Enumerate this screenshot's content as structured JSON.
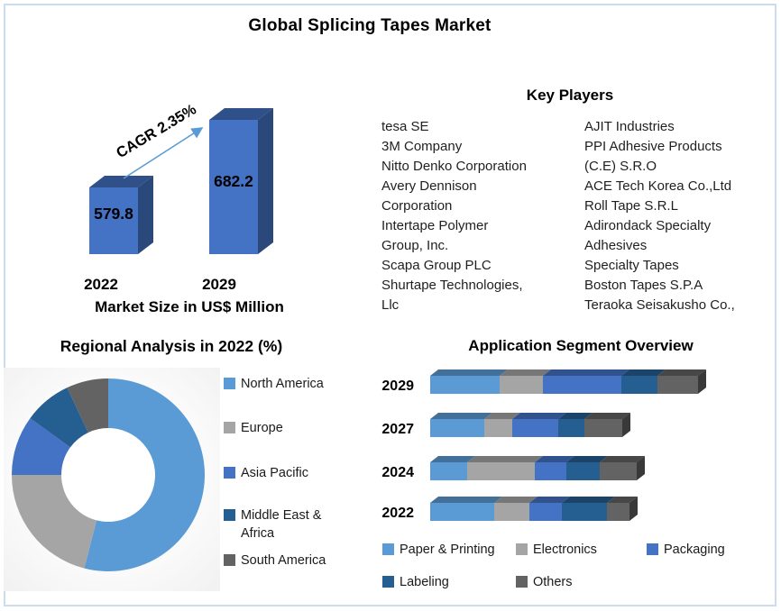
{
  "title": "Global Splicing Tapes Market",
  "key_players": {
    "title": "Key Players",
    "column_left": [
      "tesa SE",
      "3M Company",
      "Nitto Denko Corporation",
      "Avery Dennison\nCorporation",
      "Intertape Polymer\nGroup, Inc.",
      "Scapa Group PLC",
      "Shurtape Technologies,\nLlc"
    ],
    "column_right": [
      "AJIT Industries",
      "PPI Adhesive Products\n(C.E) S.R.O",
      "ACE Tech Korea Co.,Ltd",
      "Roll Tape S.R.L",
      "Adirondack Specialty\nAdhesives",
      "Specialty Tapes",
      "Boston Tapes S.P.A",
      "Teraoka Seisakusho Co.,"
    ]
  },
  "chart_data": [
    {
      "id": "market_size",
      "type": "bar",
      "title": "Market Size in US$ Million",
      "categories": [
        "2022",
        "2029"
      ],
      "values": [
        579.8,
        682.2
      ],
      "annotation": "CAGR 2.35%",
      "bar_color": "#4472C4",
      "arrow_color": "#5B9BD5",
      "xlabel": "",
      "ylabel": ""
    },
    {
      "id": "regional_analysis",
      "type": "pie",
      "subtype": "donut",
      "title": "Regional Analysis in 2022 (%)",
      "labels": [
        "North America",
        "Europe",
        "Asia Pacific",
        "Middle East & Africa",
        "South America"
      ],
      "values": [
        54,
        21,
        10,
        8,
        7
      ],
      "colors": [
        "#5B9BD5",
        "#A5A5A5",
        "#4472C4",
        "#255E91",
        "#636363"
      ],
      "legend_position": "right"
    },
    {
      "id": "application_segment",
      "type": "bar",
      "subtype": "stacked-horizontal",
      "title": "Application Segment Overview",
      "categories": [
        "2029",
        "2027",
        "2024",
        "2022"
      ],
      "series": [
        {
          "name": "Paper & Printing",
          "color": "#5B9BD5",
          "values": [
            77,
            60,
            41,
            71
          ]
        },
        {
          "name": "Electronics",
          "color": "#A5A5A5",
          "values": [
            48,
            31,
            75,
            39
          ]
        },
        {
          "name": "Packaging",
          "color": "#4472C4",
          "values": [
            87,
            51,
            35,
            36
          ]
        },
        {
          "name": "Labeling",
          "color": "#255E91",
          "values": [
            40,
            29,
            37,
            50
          ]
        },
        {
          "name": "Others",
          "color": "#636363",
          "values": [
            45,
            42,
            41,
            25
          ]
        }
      ],
      "legend_position": "bottom"
    }
  ]
}
